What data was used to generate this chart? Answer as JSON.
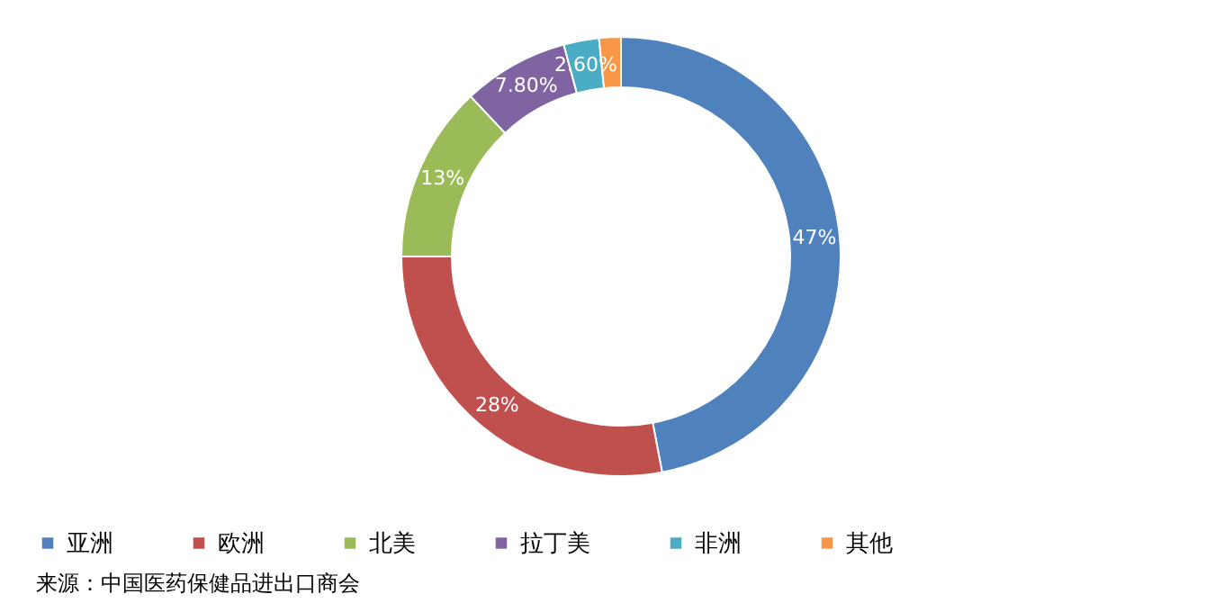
{
  "chart_data": {
    "type": "donut",
    "categories": [
      "亚洲",
      "欧洲",
      "北美",
      "拉丁美",
      "非洲",
      "其他"
    ],
    "values": [
      47,
      28,
      13,
      7.8,
      2.6,
      1.6
    ],
    "value_labels": [
      "47%",
      "28%",
      "13%",
      "7.80%",
      "2.60%",
      null
    ],
    "colors": [
      "#4f81bd",
      "#c0504d",
      "#9bbb59",
      "#8064a2",
      "#4bacc6",
      "#f79646"
    ],
    "legend": "bottom",
    "annotations": [
      "来源：中国医药保健品进出口商会"
    ]
  }
}
